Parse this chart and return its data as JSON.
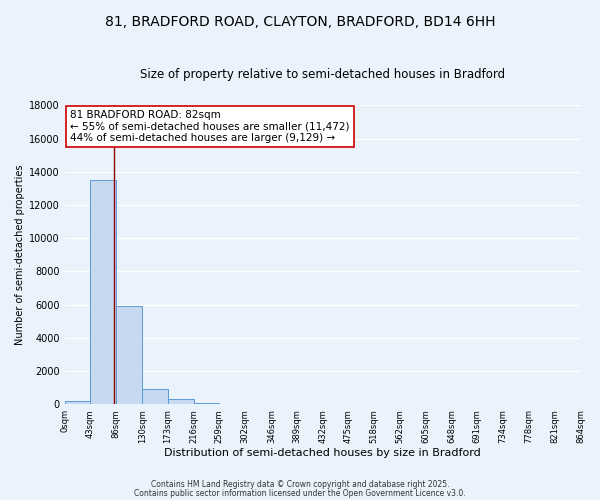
{
  "title": "81, BRADFORD ROAD, CLAYTON, BRADFORD, BD14 6HH",
  "subtitle": "Size of property relative to semi-detached houses in Bradford",
  "xlabel": "Distribution of semi-detached houses by size in Bradford",
  "ylabel": "Number of semi-detached properties",
  "bar_values": [
    200,
    13500,
    5900,
    950,
    300,
    80,
    40,
    0,
    0,
    0,
    0,
    0,
    0,
    0,
    0,
    0,
    0,
    0,
    0,
    0
  ],
  "bin_edges": [
    0,
    43,
    86,
    130,
    173,
    216,
    259,
    302,
    346,
    389,
    432,
    475,
    518,
    562,
    605,
    648,
    691,
    734,
    778,
    821,
    864
  ],
  "tick_labels": [
    "0sqm",
    "43sqm",
    "86sqm",
    "130sqm",
    "173sqm",
    "216sqm",
    "259sqm",
    "302sqm",
    "346sqm",
    "389sqm",
    "432sqm",
    "475sqm",
    "518sqm",
    "562sqm",
    "605sqm",
    "648sqm",
    "691sqm",
    "734sqm",
    "778sqm",
    "821sqm",
    "864sqm"
  ],
  "bar_color": "#c6d9f1",
  "bar_edge_color": "#5b9bd5",
  "background_color": "#eaf3fb",
  "grid_color": "#ffffff",
  "property_line_x": 82,
  "property_line_color": "#8b0000",
  "annotation_title": "81 BRADFORD ROAD: 82sqm",
  "annotation_line1": "← 55% of semi-detached houses are smaller (11,472)",
  "annotation_line2": "44% of semi-detached houses are larger (9,129) →",
  "ylim": [
    0,
    18000
  ],
  "yticks": [
    0,
    2000,
    4000,
    6000,
    8000,
    10000,
    12000,
    14000,
    16000,
    18000
  ],
  "footer_line1": "Contains HM Land Registry data © Crown copyright and database right 2025.",
  "footer_line2": "Contains public sector information licensed under the Open Government Licence v3.0.",
  "title_fontsize": 10,
  "subtitle_fontsize": 8.5,
  "annotation_fontsize": 7.5,
  "footer_fontsize": 5.5
}
